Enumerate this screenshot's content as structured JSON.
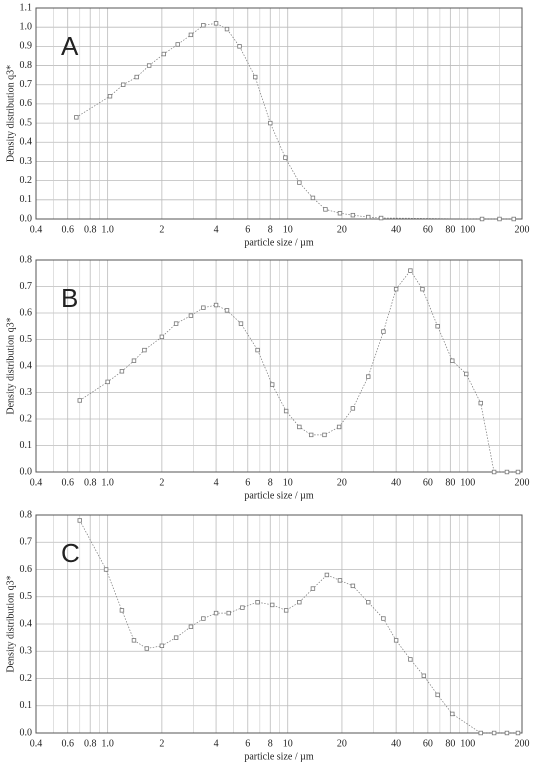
{
  "chart_data": [
    {
      "type": "line",
      "label": "A",
      "xlabel": "particle size / µm",
      "ylabel": "Density distribution q3*",
      "xscale": "log",
      "grid": true,
      "xlim": [
        0.4,
        200
      ],
      "ylim": [
        0,
        1.1
      ],
      "xticks": [
        0.4,
        0.6,
        0.8,
        {
          "value": 1,
          "label": "1.0"
        },
        2,
        4,
        6,
        8,
        10,
        20,
        40,
        60,
        80,
        100,
        200
      ],
      "xminor": [
        0.5,
        0.7,
        0.9,
        3,
        5,
        7,
        9,
        30,
        50,
        70,
        90,
        150
      ],
      "yticks": [
        {
          "value": 0,
          "label": "0.0"
        },
        0.1,
        0.2,
        0.3,
        0.4,
        0.5,
        0.6,
        0.7,
        0.8,
        0.9,
        {
          "value": 1,
          "label": "1.0"
        },
        1.1
      ],
      "series": [
        {
          "color": "#777777",
          "x": [
            0.67,
            1.03,
            1.22,
            1.45,
            1.7,
            2.05,
            2.45,
            2.9,
            3.4,
            4.0,
            4.6,
            5.4,
            6.6,
            8.0,
            9.7,
            11.6,
            13.8,
            16.2,
            19.5,
            23,
            28,
            33,
            120,
            150,
            180
          ],
          "values": [
            0.53,
            0.64,
            0.7,
            0.74,
            0.8,
            0.86,
            0.91,
            0.96,
            1.01,
            1.02,
            0.99,
            0.9,
            0.74,
            0.5,
            0.32,
            0.19,
            0.11,
            0.05,
            0.03,
            0.02,
            0.01,
            0.005,
            0,
            0,
            0
          ]
        }
      ]
    },
    {
      "type": "line",
      "label": "B",
      "xlabel": "particle size / µm",
      "ylabel": "Density distribution q3*",
      "xscale": "log",
      "grid": true,
      "xlim": [
        0.4,
        200
      ],
      "ylim": [
        0,
        0.8
      ],
      "xticks": [
        0.4,
        0.6,
        0.8,
        {
          "value": 1,
          "label": "1.0"
        },
        2,
        4,
        6,
        8,
        10,
        20,
        40,
        60,
        80,
        100,
        200
      ],
      "xminor": [
        0.5,
        0.7,
        0.9,
        3,
        5,
        7,
        9,
        30,
        50,
        70,
        90,
        150
      ],
      "yticks": [
        {
          "value": 0,
          "label": "0.0"
        },
        0.1,
        0.2,
        0.3,
        0.4,
        0.5,
        0.6,
        0.7,
        0.8
      ],
      "series": [
        {
          "color": "#777777",
          "x": [
            0.7,
            1.0,
            1.2,
            1.4,
            1.6,
            2.0,
            2.4,
            2.9,
            3.4,
            4.0,
            4.6,
            5.5,
            6.8,
            8.2,
            9.8,
            11.6,
            13.5,
            16,
            19.3,
            23,
            28,
            34,
            40,
            48,
            56,
            68,
            82,
            98,
            118,
            140,
            165,
            190
          ],
          "values": [
            0.27,
            0.34,
            0.38,
            0.42,
            0.46,
            0.51,
            0.56,
            0.59,
            0.62,
            0.63,
            0.61,
            0.56,
            0.46,
            0.33,
            0.23,
            0.17,
            0.14,
            0.14,
            0.17,
            0.24,
            0.36,
            0.53,
            0.69,
            0.76,
            0.69,
            0.55,
            0.42,
            0.37,
            0.26,
            0,
            0,
            0
          ]
        }
      ]
    },
    {
      "type": "line",
      "label": "C",
      "xlabel": "particle size / µm",
      "ylabel": "Density distribution q3*",
      "xscale": "log",
      "grid": true,
      "xlim": [
        0.4,
        200
      ],
      "ylim": [
        0,
        0.8
      ],
      "xticks": [
        0.4,
        0.6,
        0.8,
        {
          "value": 1,
          "label": "1.0"
        },
        2,
        4,
        6,
        8,
        10,
        20,
        40,
        60,
        80,
        100,
        200
      ],
      "xminor": [
        0.5,
        0.7,
        0.9,
        3,
        5,
        7,
        9,
        30,
        50,
        70,
        90,
        150
      ],
      "yticks": [
        {
          "value": 0,
          "label": "0.0"
        },
        0.1,
        0.2,
        0.3,
        0.4,
        0.5,
        0.6,
        0.7,
        0.8
      ],
      "series": [
        {
          "color": "#777777",
          "x": [
            0.7,
            0.98,
            1.2,
            1.4,
            1.65,
            2.0,
            2.4,
            2.9,
            3.4,
            4.0,
            4.7,
            5.6,
            6.8,
            8.2,
            9.8,
            11.6,
            13.8,
            16.5,
            19.5,
            23,
            28,
            34,
            40,
            48,
            57,
            68,
            82,
            118,
            140,
            165,
            190
          ],
          "values": [
            0.78,
            0.6,
            0.45,
            0.34,
            0.31,
            0.32,
            0.35,
            0.39,
            0.42,
            0.44,
            0.44,
            0.46,
            0.48,
            0.47,
            0.45,
            0.48,
            0.53,
            0.58,
            0.56,
            0.54,
            0.48,
            0.42,
            0.34,
            0.27,
            0.21,
            0.14,
            0.07,
            0,
            0,
            0,
            0
          ]
        }
      ]
    }
  ]
}
